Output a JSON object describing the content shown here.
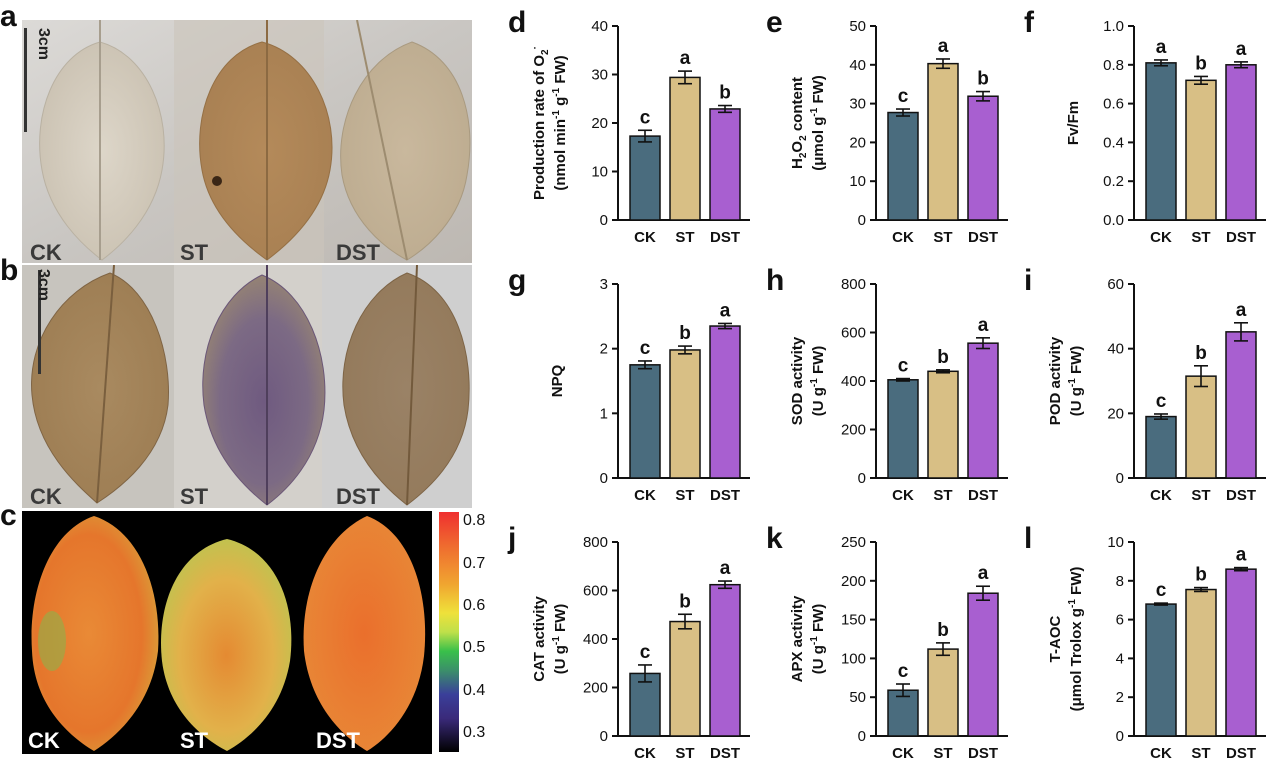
{
  "photos": {
    "a": {
      "letter": "a",
      "scale": "3cm",
      "labels": [
        "CK",
        "ST",
        "DST"
      ]
    },
    "b": {
      "letter": "b",
      "scale": "3cm",
      "labels": [
        "CK",
        "ST",
        "DST"
      ]
    },
    "c": {
      "letter": "c",
      "labels": [
        "CK",
        "ST",
        "DST"
      ],
      "colorbar_ticks": [
        "0.8",
        "0.7",
        "0.6",
        "0.5",
        "0.4",
        "0.3"
      ]
    }
  },
  "colors": {
    "CK": "#4a6c7e",
    "ST": "#d8bf85",
    "DST": "#a85fd0"
  },
  "chart_data": [
    {
      "letter": "d",
      "type": "bar",
      "categories": [
        "CK",
        "ST",
        "DST"
      ],
      "values": [
        17.3,
        29.4,
        22.9
      ],
      "errors": [
        1.2,
        1.3,
        0.7
      ],
      "letters": [
        "c",
        "a",
        "b"
      ],
      "ylabel_lines": [
        "Production rate of O2·",
        "(nmol min-1 g-1 FW)"
      ],
      "ylim": [
        0,
        40
      ],
      "yticks": [
        0,
        10,
        20,
        30,
        40
      ]
    },
    {
      "letter": "e",
      "type": "bar",
      "categories": [
        "CK",
        "ST",
        "DST"
      ],
      "values": [
        27.7,
        40.3,
        31.9
      ],
      "errors": [
        0.9,
        1.2,
        1.2
      ],
      "letters": [
        "c",
        "a",
        "b"
      ],
      "ylabel_lines": [
        "H2O2 content",
        "(μmol g-1 FW)"
      ],
      "ylim": [
        0,
        50
      ],
      "yticks": [
        0,
        10,
        20,
        30,
        40,
        50
      ]
    },
    {
      "letter": "f",
      "type": "bar",
      "categories": [
        "CK",
        "ST",
        "DST"
      ],
      "values": [
        0.81,
        0.72,
        0.8
      ],
      "errors": [
        0.015,
        0.02,
        0.015
      ],
      "letters": [
        "a",
        "b",
        "a"
      ],
      "ylabel_lines": [
        "Fv/Fm"
      ],
      "ylim": [
        0,
        1.0
      ],
      "yticks": [
        0.0,
        0.2,
        0.4,
        0.6,
        0.8,
        1.0
      ]
    },
    {
      "letter": "g",
      "type": "bar",
      "categories": [
        "CK",
        "ST",
        "DST"
      ],
      "values": [
        1.75,
        1.98,
        2.35
      ],
      "errors": [
        0.06,
        0.06,
        0.04
      ],
      "letters": [
        "c",
        "b",
        "a"
      ],
      "ylabel_lines": [
        "NPQ"
      ],
      "ylim": [
        0,
        3
      ],
      "yticks": [
        0,
        1,
        2,
        3
      ]
    },
    {
      "letter": "h",
      "type": "bar",
      "categories": [
        "CK",
        "ST",
        "DST"
      ],
      "values": [
        405,
        440,
        556
      ],
      "errors": [
        5,
        6,
        22
      ],
      "letters": [
        "c",
        "b",
        "a"
      ],
      "ylabel_lines": [
        "SOD activity",
        "(U g-1 FW)"
      ],
      "ylim": [
        0,
        800
      ],
      "yticks": [
        0,
        200,
        400,
        600,
        800
      ]
    },
    {
      "letter": "i",
      "type": "bar",
      "categories": [
        "CK",
        "ST",
        "DST"
      ],
      "values": [
        19.0,
        31.5,
        45.2
      ],
      "errors": [
        0.8,
        3.2,
        2.8
      ],
      "letters": [
        "c",
        "b",
        "a"
      ],
      "ylabel_lines": [
        "POD activity",
        "(U g-1 FW)"
      ],
      "ylim": [
        0,
        60
      ],
      "yticks": [
        0,
        20,
        40,
        60
      ]
    },
    {
      "letter": "j",
      "type": "bar",
      "categories": [
        "CK",
        "ST",
        "DST"
      ],
      "values": [
        258,
        472,
        624
      ],
      "errors": [
        35,
        30,
        15
      ],
      "letters": [
        "c",
        "b",
        "a"
      ],
      "ylabel_lines": [
        "CAT activity",
        "(U g-1 FW)"
      ],
      "ylim": [
        0,
        800
      ],
      "yticks": [
        0,
        200,
        400,
        600,
        800
      ]
    },
    {
      "letter": "k",
      "type": "bar",
      "categories": [
        "CK",
        "ST",
        "DST"
      ],
      "values": [
        59,
        112,
        184
      ],
      "errors": [
        8,
        8,
        9
      ],
      "letters": [
        "c",
        "b",
        "a"
      ],
      "ylabel_lines": [
        "APX activity",
        "(U g-1 FW)"
      ],
      "ylim": [
        0,
        250
      ],
      "yticks": [
        0,
        50,
        100,
        150,
        200,
        250
      ]
    },
    {
      "letter": "l",
      "type": "bar",
      "categories": [
        "CK",
        "ST",
        "DST"
      ],
      "values": [
        6.8,
        7.55,
        8.6
      ],
      "errors": [
        0.05,
        0.1,
        0.08
      ],
      "letters": [
        "c",
        "b",
        "a"
      ],
      "ylabel_lines": [
        "T-AOC",
        "(μmol Trolox g-1 FW)"
      ],
      "ylim": [
        0,
        10
      ],
      "yticks": [
        0,
        2,
        4,
        6,
        8,
        10
      ]
    }
  ]
}
